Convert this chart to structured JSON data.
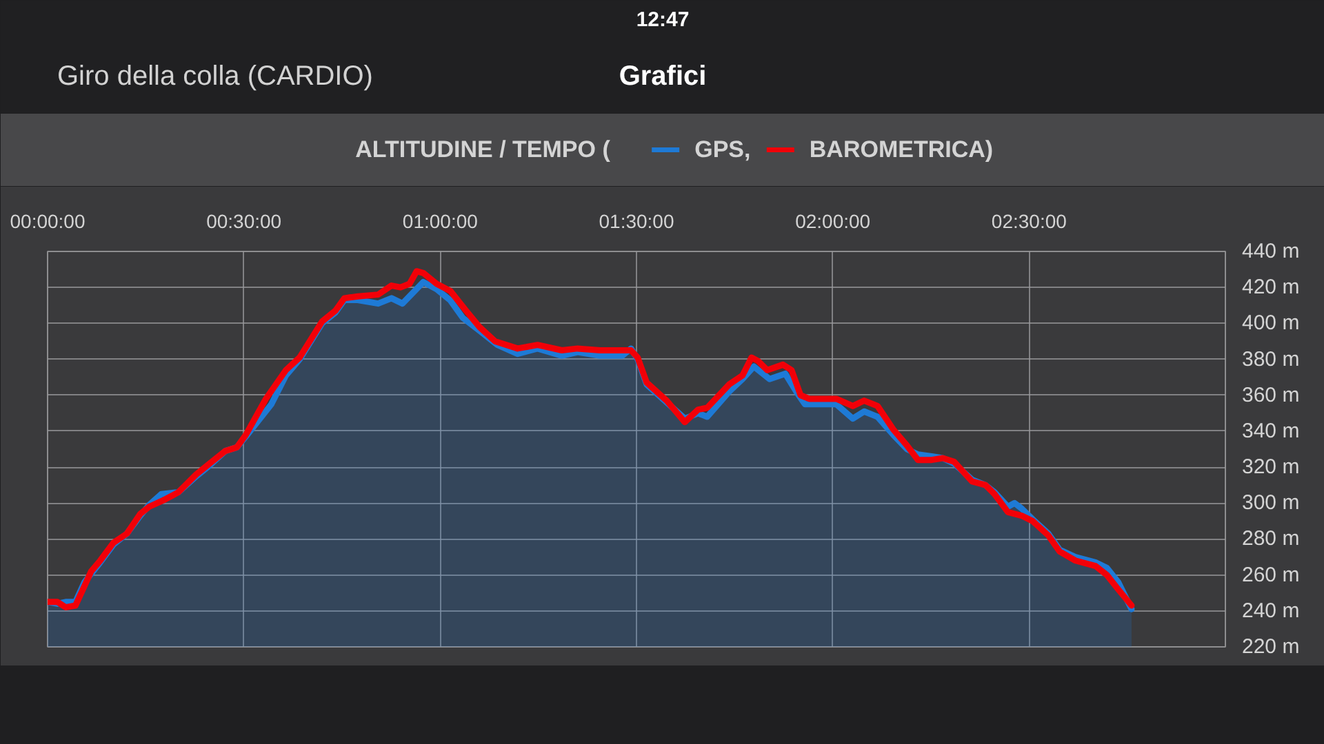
{
  "chart_data": {
    "type": "line",
    "title": "ALTITUDINE / TEMPO (",
    "annotations": [
      "12:47",
      "Giro della colla (CARDIO)",
      "Grafici"
    ],
    "xlim": [
      0,
      3
    ],
    "xticks": [
      {
        "value": 0,
        "label": "00:00:00"
      },
      {
        "value": 0.5,
        "label": "00:30:00"
      },
      {
        "value": 1,
        "label": "01:00:00"
      },
      {
        "value": 1.5,
        "label": "01:30:00"
      },
      {
        "value": 2,
        "label": "02:00:00"
      },
      {
        "value": 2.5,
        "label": "02:30:00"
      }
    ],
    "ylim": [
      220,
      440
    ],
    "yticks": [
      {
        "value": 220,
        "label": "220 m"
      },
      {
        "value": 240,
        "label": "240 m"
      },
      {
        "value": 260,
        "label": "260 m"
      },
      {
        "value": 280,
        "label": "280 m"
      },
      {
        "value": 300,
        "label": "300 m"
      },
      {
        "value": 320,
        "label": "320 m"
      },
      {
        "value": 340,
        "label": "340 m"
      },
      {
        "value": 360,
        "label": "360 m"
      },
      {
        "value": 380,
        "label": "380 m"
      },
      {
        "value": 400,
        "label": "400 m"
      },
      {
        "value": 420,
        "label": "420 m"
      },
      {
        "value": 440,
        "label": "440 m"
      }
    ],
    "grid": true,
    "legend": "top",
    "series": [
      {
        "name": "GPS,",
        "type": "area",
        "color": "#1e7ad6",
        "x": [
          0.0,
          0.025,
          0.046,
          0.071,
          0.094,
          0.134,
          0.168,
          0.202,
          0.236,
          0.259,
          0.29,
          0.333,
          0.379,
          0.413,
          0.453,
          0.482,
          0.505,
          0.57,
          0.607,
          0.642,
          0.699,
          0.733,
          0.756,
          0.79,
          0.842,
          0.876,
          0.904,
          0.957,
          0.991,
          1.025,
          1.058,
          1.1,
          1.146,
          1.197,
          1.248,
          1.31,
          1.35,
          1.407,
          1.464,
          1.486,
          1.503,
          1.526,
          1.577,
          1.623,
          1.657,
          1.68,
          1.736,
          1.77,
          1.799,
          1.839,
          1.879,
          1.907,
          1.929,
          2.009,
          2.051,
          2.08,
          2.114,
          2.154,
          2.189,
          2.217,
          2.252,
          2.28,
          2.309,
          2.355,
          2.389,
          2.412,
          2.446,
          2.463,
          2.481,
          2.509,
          2.549,
          2.578,
          2.618,
          2.669,
          2.698,
          2.727,
          2.761
        ],
        "values": [
          245,
          244,
          245,
          245,
          256,
          267,
          277,
          283,
          293,
          299,
          305,
          306,
          315,
          321,
          329,
          331,
          337,
          355,
          371,
          380,
          400,
          406,
          413,
          413,
          411,
          414,
          411,
          423,
          419,
          413,
          403,
          396,
          388,
          383,
          386,
          382,
          384,
          382,
          382,
          386,
          380,
          366,
          356,
          347,
          350,
          348,
          362,
          369,
          376,
          369,
          372,
          362,
          355,
          355,
          347,
          351,
          348,
          338,
          330,
          327,
          326,
          325,
          322,
          313,
          310,
          306,
          298,
          300,
          297,
          291,
          283,
          274,
          270,
          267,
          264,
          256,
          241
        ]
      },
      {
        "name": "BAROMETRICA)",
        "color": "#f20008",
        "x": [
          0.0,
          0.025,
          0.046,
          0.071,
          0.088,
          0.111,
          0.134,
          0.168,
          0.202,
          0.236,
          0.259,
          0.299,
          0.333,
          0.379,
          0.413,
          0.453,
          0.482,
          0.505,
          0.556,
          0.607,
          0.642,
          0.699,
          0.733,
          0.756,
          0.79,
          0.842,
          0.876,
          0.899,
          0.922,
          0.94,
          0.957,
          0.991,
          1.026,
          1.066,
          1.1,
          1.14,
          1.197,
          1.248,
          1.31,
          1.35,
          1.407,
          1.486,
          1.503,
          1.526,
          1.577,
          1.623,
          1.657,
          1.68,
          1.736,
          1.77,
          1.793,
          1.81,
          1.833,
          1.873,
          1.895,
          1.918,
          1.94,
          2.009,
          2.051,
          2.08,
          2.114,
          2.154,
          2.189,
          2.217,
          2.252,
          2.28,
          2.309,
          2.355,
          2.389,
          2.412,
          2.446,
          2.481,
          2.509,
          2.549,
          2.578,
          2.618,
          2.669,
          2.698,
          2.727,
          2.761
        ],
        "values": [
          245,
          245,
          242,
          243,
          251,
          262,
          268,
          278,
          283,
          294,
          298,
          302,
          306,
          316,
          322,
          329,
          331,
          338,
          358,
          374,
          381,
          401,
          407,
          414,
          415,
          416,
          421,
          420,
          422,
          429,
          428,
          422,
          418,
          407,
          398,
          390,
          386,
          388,
          385,
          386,
          385,
          385,
          381,
          367,
          357,
          345,
          352,
          353,
          366,
          371,
          381,
          379,
          374,
          377,
          374,
          360,
          358,
          358,
          354,
          357,
          354,
          341,
          332,
          324,
          324,
          325,
          323,
          312,
          310,
          305,
          295,
          293,
          290,
          282,
          273,
          268,
          265,
          260,
          252,
          243
        ]
      }
    ]
  }
}
